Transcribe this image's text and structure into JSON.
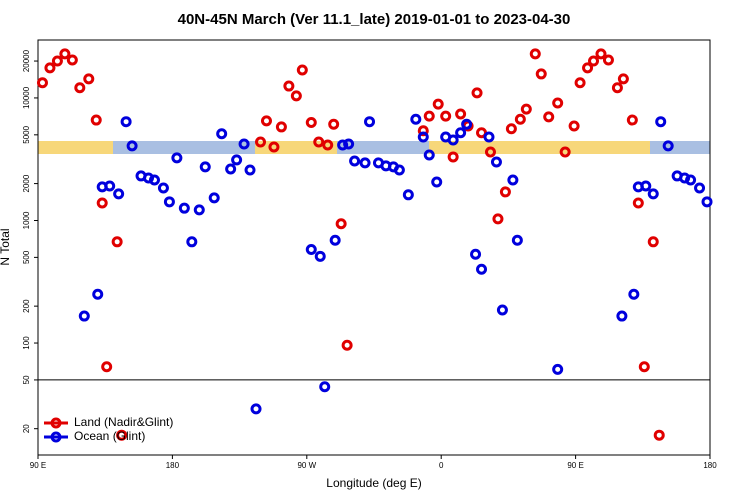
{
  "chart_data": {
    "type": "scatter",
    "title": "40N-45N March (Ver 11.1_late)   2019-01-01 to 2023-04-30",
    "x_label": "Longitude (deg E)",
    "y_label": "N Total",
    "xlim": [
      90,
      540
    ],
    "xticks": [
      {
        "value": 90,
        "label": "90 E"
      },
      180,
      {
        "value": 270,
        "label": "90 W"
      },
      {
        "value": 360,
        "label": "0"
      },
      {
        "value": 450,
        "label": "90 E"
      },
      {
        "value": 540,
        "label": "180"
      }
    ],
    "ylim": [
      12.2,
      29700
    ],
    "yticks": [
      20,
      50,
      100,
      200,
      500,
      1000,
      2000,
      5000,
      10000,
      20000
    ],
    "log_y": true,
    "hlines": [
      50
    ],
    "legend": "lower left",
    "series": [
      {
        "name": "Land (Nadir&Glint)",
        "color": "#e00000",
        "x": [
          93,
          98,
          103,
          108,
          113,
          118,
          124,
          129,
          133,
          136,
          143,
          146,
          239,
          243,
          248,
          253,
          258,
          263,
          267,
          273,
          278,
          284,
          288,
          293,
          297,
          348,
          352,
          358,
          363,
          368,
          373,
          378,
          384,
          387,
          393,
          398,
          403,
          407,
          413,
          417,
          423,
          427,
          432,
          438,
          443,
          449,
          453,
          458,
          462,
          467,
          472,
          478,
          482,
          488,
          492,
          496,
          502,
          506
        ],
        "values": [
          13300,
          17600,
          20000,
          22900,
          20400,
          12100,
          14300,
          6600,
          1390,
          64,
          670,
          17.7,
          4370,
          6500,
          3980,
          5800,
          12500,
          10400,
          16900,
          6300,
          4370,
          4130,
          6100,
          940,
          96,
          5400,
          7100,
          8900,
          7100,
          3300,
          7400,
          5900,
          11000,
          5200,
          3620,
          1030,
          1710,
          5600,
          6700,
          8100,
          22900,
          15700,
          7000,
          9100,
          3620,
          5900,
          13300,
          17600,
          20000,
          22900,
          20400,
          12100,
          14300,
          6600,
          1390,
          64,
          670,
          17.7
        ]
      },
      {
        "name": "Ocean (Glint)",
        "color": "#0000dd",
        "x": [
          121,
          130,
          133,
          138,
          144,
          149,
          153,
          159,
          164,
          168,
          174,
          178,
          183,
          188,
          193,
          198,
          202,
          208,
          213,
          219,
          223,
          228,
          232,
          236,
          273,
          279,
          282,
          289,
          294,
          298,
          302,
          309,
          312,
          318,
          323,
          328,
          332,
          338,
          343,
          348,
          352,
          357,
          363,
          368,
          373,
          377,
          383,
          387,
          392,
          397,
          401,
          408,
          411,
          438,
          481,
          489,
          492,
          497,
          502,
          507,
          512,
          518,
          523,
          527,
          533,
          538
        ],
        "values": [
          166,
          250,
          1880,
          1910,
          1650,
          6400,
          4060,
          2310,
          2220,
          2140,
          1840,
          1420,
          3240,
          1260,
          670,
          1220,
          2740,
          1530,
          5100,
          2630,
          3120,
          4210,
          2580,
          29,
          580,
          510,
          44,
          690,
          4130,
          4210,
          3060,
          2950,
          6400,
          2950,
          2790,
          2740,
          2580,
          1620,
          6700,
          4800,
          3420,
          2060,
          4800,
          4540,
          5200,
          6100,
          530,
          400,
          4800,
          3000,
          186,
          2140,
          690,
          61,
          166,
          250,
          1880,
          1910,
          1650,
          6400,
          4060,
          2310,
          2220,
          2140,
          1840,
          1420
        ]
      }
    ]
  }
}
